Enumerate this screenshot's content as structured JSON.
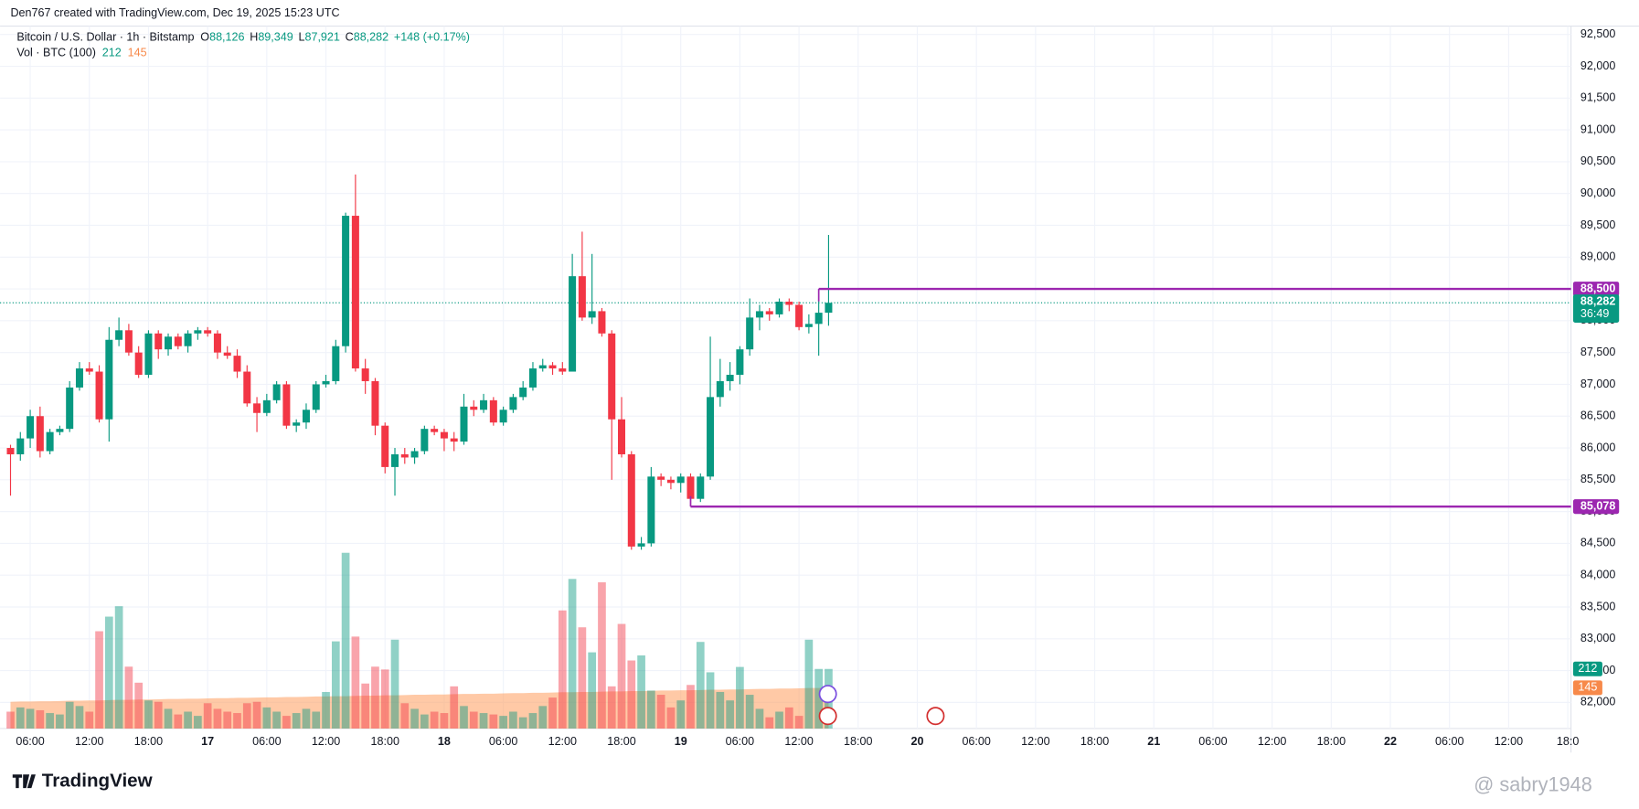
{
  "header": {
    "credit": "Den767 created with TradingView.com, Dec 19, 2025 15:23 UTC"
  },
  "chart_data": {
    "type": "candlestick",
    "legend": {
      "symbol": "Bitcoin / U.S. Dollar · 1h · Bitstamp",
      "items": [
        {
          "key": "O",
          "value": "88,126"
        },
        {
          "key": "H",
          "value": "89,349"
        },
        {
          "key": "L",
          "value": "87,921"
        },
        {
          "key": "C",
          "value": "88,282"
        }
      ],
      "change": "+148 (+0.17%)",
      "volume_title": "Vol · BTC (100)"
    },
    "colors": {
      "up": "#089981",
      "down": "#f23645",
      "level": "#9c27b0",
      "volume_ma": "#ff9d5c"
    },
    "open": [
      86000,
      85900,
      86150,
      86500,
      85950,
      86250,
      86300,
      86950,
      87250,
      87200,
      86450,
      87700,
      87850,
      87500,
      87150,
      87800,
      87550,
      87750,
      87600,
      87800,
      87850,
      87800,
      87500,
      87450,
      87200,
      86700,
      86550,
      86750,
      87000,
      86350,
      86400,
      86600,
      87000,
      87050,
      87600,
      89650,
      87250,
      87050,
      86350,
      85700,
      85900,
      85850,
      85950,
      86300,
      86250,
      86150,
      86100,
      86650,
      86600,
      86750,
      86400,
      86600,
      86800,
      86950,
      87250,
      87300,
      87250,
      87200,
      88700,
      88050,
      88150,
      87800,
      86450,
      85900,
      84450,
      84500,
      85550,
      85500,
      85450,
      85550,
      85200,
      85550,
      86800,
      87050,
      87150,
      87550,
      88050,
      88150,
      88100,
      88300,
      88250,
      87900,
      87950,
      88126
    ],
    "high": [
      86050,
      86250,
      86600,
      86650,
      86300,
      86350,
      87050,
      87350,
      87350,
      87300,
      87900,
      88050,
      87950,
      87600,
      87850,
      87850,
      87800,
      87800,
      87850,
      87900,
      87900,
      87850,
      87600,
      87550,
      87300,
      86800,
      86850,
      87050,
      87050,
      86450,
      86700,
      87050,
      87150,
      87700,
      89700,
      90300,
      87400,
      87100,
      86400,
      86000,
      86000,
      86000,
      86350,
      86350,
      86300,
      86250,
      86850,
      86750,
      86850,
      86800,
      86650,
      86850,
      87050,
      87350,
      87400,
      87350,
      87350,
      89050,
      89400,
      89050,
      88200,
      87850,
      86800,
      85950,
      84600,
      85700,
      85600,
      85550,
      85600,
      85600,
      85600,
      87750,
      87400,
      87350,
      87600,
      88350,
      88250,
      88200,
      88350,
      88350,
      88300,
      88100,
      88500,
      89349
    ],
    "low": [
      85250,
      85800,
      86000,
      85850,
      85900,
      86200,
      86250,
      86900,
      87150,
      86400,
      86100,
      87600,
      87450,
      87100,
      87100,
      87400,
      87450,
      87550,
      87500,
      87700,
      87750,
      87400,
      87400,
      87100,
      86650,
      86250,
      86500,
      86700,
      86300,
      86250,
      86300,
      86550,
      86950,
      87000,
      87500,
      87200,
      86850,
      86200,
      85600,
      85250,
      85750,
      85750,
      85900,
      86200,
      85950,
      85950,
      86050,
      86500,
      86550,
      86350,
      86350,
      86550,
      86750,
      86900,
      87200,
      87150,
      87150,
      87200,
      88000,
      87950,
      87750,
      85500,
      85850,
      84400,
      84400,
      84450,
      85400,
      85350,
      85300,
      85078,
      85150,
      85500,
      86650,
      86900,
      87000,
      87450,
      87850,
      88000,
      88050,
      88150,
      87850,
      87800,
      87450,
      87921
    ],
    "close": [
      85900,
      86150,
      86500,
      85950,
      86250,
      86300,
      86950,
      87250,
      87200,
      86450,
      87700,
      87850,
      87500,
      87150,
      87800,
      87550,
      87750,
      87600,
      87800,
      87850,
      87800,
      87500,
      87450,
      87200,
      86700,
      86550,
      86750,
      87000,
      86350,
      86400,
      86600,
      87000,
      87050,
      87600,
      89650,
      87250,
      87050,
      86350,
      85700,
      85900,
      85850,
      85950,
      86300,
      86250,
      86150,
      86100,
      86650,
      86600,
      86750,
      86400,
      86600,
      86800,
      86950,
      87250,
      87300,
      87250,
      87200,
      88700,
      88050,
      88150,
      87800,
      86450,
      85900,
      84450,
      84500,
      85550,
      85500,
      85450,
      85550,
      85200,
      85550,
      86800,
      87050,
      87150,
      87550,
      88050,
      88150,
      88100,
      88300,
      88250,
      87900,
      87950,
      88126,
      88282
    ],
    "volume": [
      60,
      75,
      70,
      65,
      55,
      50,
      95,
      80,
      60,
      346,
      398,
      435,
      220,
      163,
      100,
      95,
      70,
      50,
      60,
      45,
      90,
      70,
      60,
      55,
      90,
      95,
      75,
      60,
      45,
      55,
      70,
      60,
      130,
      310,
      625,
      327,
      160,
      220,
      210,
      316,
      90,
      70,
      50,
      60,
      55,
      150,
      80,
      60,
      55,
      50,
      45,
      60,
      40,
      55,
      80,
      110,
      420,
      532,
      360,
      271,
      520,
      150,
      372,
      242,
      260,
      135,
      120,
      75,
      100,
      155,
      308,
      200,
      130,
      100,
      219,
      120,
      70,
      40,
      60,
      75,
      45,
      316,
      212,
      212
    ],
    "volume_ma": [
      95,
      96,
      96,
      97,
      97,
      98,
      99,
      99,
      100,
      100,
      101,
      102,
      102,
      103,
      103,
      104,
      105,
      105,
      106,
      106,
      107,
      108,
      108,
      109,
      109,
      110,
      111,
      111,
      112,
      112,
      113,
      114,
      114,
      115,
      115,
      116,
      117,
      117,
      118,
      118,
      119,
      120,
      120,
      121,
      121,
      122,
      123,
      123,
      124,
      124,
      125,
      126,
      126,
      127,
      127,
      128,
      129,
      129,
      130,
      130,
      131,
      132,
      132,
      133,
      133,
      134,
      135,
      135,
      136,
      136,
      137,
      138,
      138,
      139,
      139,
      140,
      141,
      141,
      142,
      142,
      143,
      144,
      144,
      145
    ],
    "xticks": [
      "06:00",
      "12:00",
      "18:00",
      "17",
      "06:00",
      "12:00",
      "18:00",
      "18",
      "06:00",
      "12:00",
      "18:00",
      "19",
      "06:00",
      "12:00",
      "18:00",
      "20",
      "06:00",
      "12:00",
      "18:00",
      "21",
      "06:00",
      "12:00",
      "18:00",
      "22",
      "06:00",
      "12:00",
      "18:0"
    ],
    "ylim": [
      82000,
      92500
    ],
    "yticks": [
      {
        "value": 92500,
        "label": "92,500"
      },
      {
        "value": 92000,
        "label": "92,000"
      },
      {
        "value": 91500,
        "label": "91,500"
      },
      {
        "value": 91000,
        "label": "91,000"
      },
      {
        "value": 90500,
        "label": "90,500"
      },
      {
        "value": 90000,
        "label": "90,000"
      },
      {
        "value": 89500,
        "label": "89,500"
      },
      {
        "value": 89000,
        "label": "89,000"
      },
      {
        "value": 88500,
        "label": "88,500"
      },
      {
        "value": 88000,
        "label": "88,000"
      },
      {
        "value": 87500,
        "label": "87,500"
      },
      {
        "value": 87000,
        "label": "87,000"
      },
      {
        "value": 86500,
        "label": "86,500"
      },
      {
        "value": 86000,
        "label": "86,000"
      },
      {
        "value": 85500,
        "label": "85,500"
      },
      {
        "value": 85000,
        "label": "85,000"
      },
      {
        "value": 84500,
        "label": "84,500"
      },
      {
        "value": 84000,
        "label": "84,000"
      },
      {
        "value": 83500,
        "label": "83,500"
      },
      {
        "value": 83000,
        "label": "83,000"
      },
      {
        "value": 82500,
        "label": "82,500"
      },
      {
        "value": 82000,
        "label": "82,000"
      }
    ],
    "levels": [
      {
        "value": 88500,
        "label": "88,500"
      },
      {
        "value": 85078,
        "label": "85,078"
      }
    ],
    "last_price": {
      "value": 88282,
      "label": "88,282"
    },
    "countdown": "36:49",
    "grid": true
  },
  "footer": {
    "logo": "TradingView",
    "watermark": "@ sabry1948"
  }
}
